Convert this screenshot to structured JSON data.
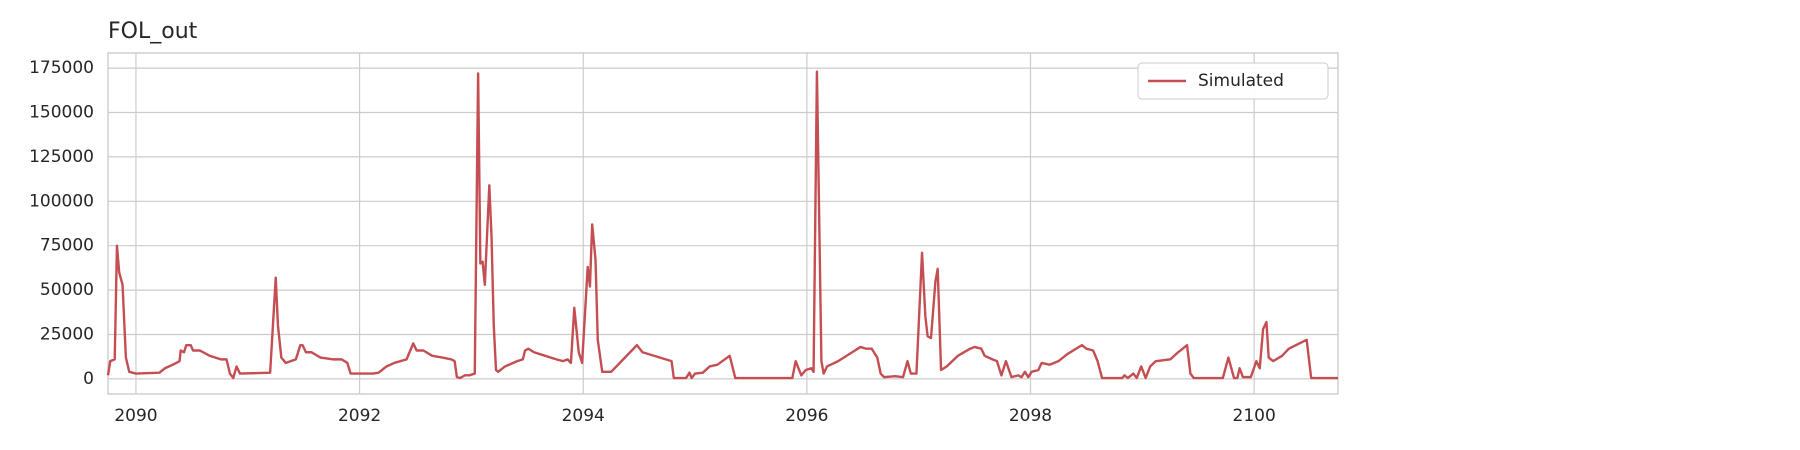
{
  "chart_data": {
    "type": "line",
    "title": "FOL_out",
    "x": [
      2089.75,
      2089.77,
      2089.81,
      2089.83,
      2089.85,
      2089.88,
      2089.91,
      2089.94,
      2090.0,
      2090.21,
      2090.26,
      2090.33,
      2090.39,
      2090.4,
      2090.43,
      2090.45,
      2090.49,
      2090.51,
      2090.57,
      2090.66,
      2090.76,
      2090.81,
      2090.84,
      2090.87,
      2090.9,
      2090.93,
      2091.2,
      2091.25,
      2091.27,
      2091.3,
      2091.34,
      2091.43,
      2091.47,
      2091.49,
      2091.52,
      2091.57,
      2091.65,
      2091.76,
      2091.84,
      2091.89,
      2091.92,
      2092.12,
      2092.17,
      2092.24,
      2092.31,
      2092.42,
      2092.48,
      2092.51,
      2092.57,
      2092.65,
      2092.74,
      2092.82,
      2092.85,
      2092.87,
      2092.9,
      2092.94,
      2092.98,
      2093.03,
      2093.06,
      2093.08,
      2093.1,
      2093.12,
      2093.16,
      2093.18,
      2093.2,
      2093.22,
      2093.24,
      2093.3,
      2093.41,
      2093.46,
      2093.48,
      2093.51,
      2093.56,
      2093.66,
      2093.76,
      2093.82,
      2093.86,
      2093.89,
      2093.92,
      2093.96,
      2093.99,
      2094.04,
      2094.06,
      2094.08,
      2094.11,
      2094.13,
      2094.17,
      2094.25,
      2094.48,
      2094.53,
      2094.79,
      2094.81,
      2094.92,
      2094.95,
      2094.97,
      2095.0,
      2095.07,
      2095.13,
      2095.2,
      2095.31,
      2095.36,
      2095.87,
      2095.9,
      2095.95,
      2095.99,
      2096.04,
      2096.06,
      2096.09,
      2096.13,
      2096.15,
      2096.18,
      2096.28,
      2096.43,
      2096.48,
      2096.53,
      2096.58,
      2096.63,
      2096.66,
      2096.69,
      2096.79,
      2096.86,
      2096.9,
      2096.93,
      2096.98,
      2097.03,
      2097.06,
      2097.08,
      2097.11,
      2097.15,
      2097.17,
      2097.2,
      2097.25,
      2097.35,
      2097.46,
      2097.5,
      2097.56,
      2097.59,
      2097.66,
      2097.7,
      2097.74,
      2097.78,
      2097.83,
      2097.89,
      2097.92,
      2097.95,
      2097.98,
      2098.01,
      2098.07,
      2098.1,
      2098.17,
      2098.25,
      2098.33,
      2098.46,
      2098.5,
      2098.56,
      2098.6,
      2098.64,
      2098.82,
      2098.84,
      2098.87,
      2098.92,
      2098.95,
      2098.99,
      2099.03,
      2099.07,
      2099.12,
      2099.25,
      2099.32,
      2099.4,
      2099.43,
      2099.46,
      2099.72,
      2099.77,
      2099.82,
      2099.85,
      2099.87,
      2099.9,
      2099.97,
      2100.02,
      2100.05,
      2100.08,
      2100.11,
      2100.13,
      2100.17,
      2100.25,
      2100.31,
      2100.47,
      2100.51,
      2100.75
    ],
    "series": [
      {
        "name": "Simulated",
        "color": "#c44e52",
        "values": [
          2000,
          10000,
          11000,
          75000,
          60000,
          53000,
          12000,
          4000,
          3000,
          3500,
          6000,
          8000,
          10000,
          16000,
          15000,
          19000,
          19000,
          16000,
          16000,
          13000,
          11000,
          11000,
          3000,
          500,
          7000,
          3000,
          3500,
          57000,
          30000,
          12000,
          9000,
          11000,
          19000,
          19000,
          15000,
          15000,
          12000,
          11000,
          11000,
          9000,
          3000,
          3000,
          3500,
          7000,
          9000,
          11000,
          20000,
          16000,
          16000,
          13000,
          12000,
          11000,
          10000,
          1000,
          500,
          2000,
          2000,
          3000,
          172000,
          65000,
          66000,
          53000,
          109000,
          80000,
          30000,
          5000,
          4000,
          7000,
          10000,
          11000,
          16000,
          17000,
          15000,
          13000,
          11000,
          10000,
          11000,
          9000,
          40000,
          15000,
          9000,
          63000,
          52000,
          87000,
          67000,
          22000,
          4000,
          4000,
          19000,
          15000,
          10000,
          500,
          500,
          3500,
          500,
          3000,
          3500,
          7000,
          8000,
          13000,
          500,
          500,
          10000,
          2000,
          5000,
          6000,
          4000,
          173000,
          10000,
          3000,
          7000,
          10000,
          16000,
          18000,
          17000,
          17000,
          12000,
          3000,
          1000,
          1500,
          1000,
          10000,
          3000,
          3000,
          71000,
          35000,
          24000,
          23000,
          55000,
          62000,
          5000,
          7000,
          13000,
          17000,
          18000,
          17000,
          13000,
          11000,
          10000,
          2000,
          10000,
          1000,
          2000,
          1000,
          4000,
          1000,
          4000,
          5000,
          9000,
          8000,
          10000,
          14000,
          19000,
          17000,
          16000,
          10000,
          500,
          500,
          2000,
          500,
          3000,
          500,
          7000,
          500,
          7000,
          10000,
          11000,
          15000,
          19000,
          3000,
          500,
          500,
          12000,
          500,
          500,
          6000,
          1000,
          1000,
          10000,
          6000,
          28000,
          32000,
          12000,
          10000,
          13000,
          17000,
          22000,
          500,
          500
        ]
      }
    ],
    "xlim": [
      2089.75,
      2100.75
    ],
    "xticks": [
      2090,
      2092,
      2094,
      2096,
      2098,
      2100
    ],
    "ylim": [
      -8500,
      183500
    ],
    "yticks": [
      0,
      25000,
      50000,
      75000,
      100000,
      125000,
      150000,
      175000
    ],
    "grid": true,
    "legend": "upper right"
  }
}
